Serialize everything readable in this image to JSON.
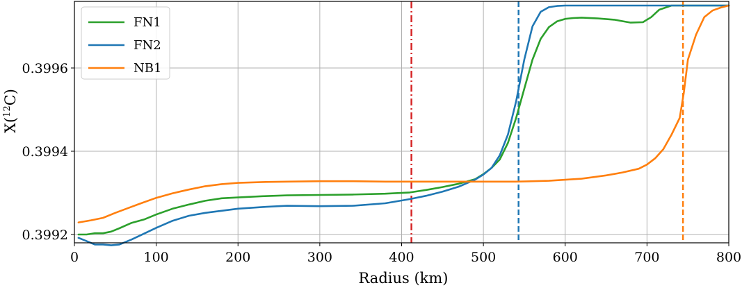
{
  "chart_data": {
    "type": "line",
    "xlabel": "Radius (km)",
    "ylabel": "X(12C)",
    "ylabel_sup": "12",
    "xlim": [
      0,
      800
    ],
    "ylim": [
      0.39918,
      0.39976
    ],
    "xticks": [
      0,
      100,
      200,
      300,
      400,
      500,
      600,
      700,
      800
    ],
    "xtick_labels": [
      "0",
      "100",
      "200",
      "300",
      "400",
      "500",
      "600",
      "700",
      "800"
    ],
    "yticks": [
      0.3992,
      0.3994,
      0.3996
    ],
    "ytick_labels": [
      "0.3992",
      "0.3994",
      "0.3996"
    ],
    "grid": true,
    "legend_position": "top-left",
    "series": [
      {
        "name": "FN1",
        "color": "#2ca02c",
        "x": [
          5,
          15,
          25,
          35,
          45,
          55,
          70,
          85,
          100,
          120,
          140,
          160,
          180,
          200,
          230,
          260,
          300,
          340,
          380,
          410,
          430,
          450,
          470,
          490,
          500,
          510,
          520,
          530,
          540,
          550,
          560,
          570,
          580,
          590,
          600,
          610,
          620,
          640,
          660,
          680,
          695,
          705,
          715,
          730,
          745,
          760,
          780,
          800
        ],
        "y": [
          0.3992,
          0.3992,
          0.399203,
          0.399203,
          0.399207,
          0.399215,
          0.399228,
          0.399236,
          0.399248,
          0.399262,
          0.399272,
          0.399281,
          0.399287,
          0.399289,
          0.399292,
          0.399294,
          0.399295,
          0.399296,
          0.399298,
          0.399301,
          0.399307,
          0.399314,
          0.399322,
          0.399333,
          0.399345,
          0.39936,
          0.39938,
          0.39942,
          0.39948,
          0.39955,
          0.39962,
          0.39967,
          0.399698,
          0.399712,
          0.399718,
          0.39972,
          0.399721,
          0.399719,
          0.399716,
          0.399709,
          0.39971,
          0.399722,
          0.39974,
          0.39975,
          0.39975,
          0.39975,
          0.39975,
          0.39975
        ]
      },
      {
        "name": "FN2",
        "color": "#1f77b4",
        "x": [
          5,
          15,
          25,
          35,
          45,
          55,
          70,
          85,
          100,
          120,
          140,
          160,
          180,
          200,
          230,
          260,
          300,
          340,
          380,
          410,
          430,
          450,
          470,
          490,
          500,
          510,
          520,
          530,
          540,
          550,
          560,
          570,
          580,
          590,
          600,
          620,
          650,
          700,
          750,
          800
        ],
        "y": [
          0.399192,
          0.399184,
          0.399176,
          0.399176,
          0.399174,
          0.399176,
          0.399188,
          0.399202,
          0.399216,
          0.399233,
          0.399245,
          0.399252,
          0.399257,
          0.399262,
          0.399266,
          0.399269,
          0.399268,
          0.399269,
          0.399275,
          0.399285,
          0.399293,
          0.399303,
          0.399315,
          0.399332,
          0.399344,
          0.39936,
          0.39939,
          0.39944,
          0.39952,
          0.39962,
          0.3997,
          0.399735,
          0.399746,
          0.399749,
          0.39975,
          0.39975,
          0.39975,
          0.39975,
          0.39975,
          0.39975
        ]
      },
      {
        "name": "NB1",
        "color": "#ff7f0e",
        "x": [
          5,
          20,
          35,
          50,
          65,
          80,
          100,
          120,
          140,
          160,
          180,
          200,
          230,
          260,
          300,
          340,
          380,
          420,
          460,
          500,
          540,
          580,
          620,
          650,
          670,
          690,
          700,
          710,
          720,
          730,
          740,
          745,
          750,
          760,
          770,
          780,
          790,
          800
        ],
        "y": [
          0.399229,
          0.399234,
          0.39924,
          0.399252,
          0.399263,
          0.399274,
          0.399288,
          0.399299,
          0.399308,
          0.399316,
          0.399321,
          0.399324,
          0.399326,
          0.399327,
          0.399328,
          0.399328,
          0.399327,
          0.399327,
          0.399327,
          0.399327,
          0.399327,
          0.399329,
          0.399334,
          0.399342,
          0.399349,
          0.399358,
          0.399368,
          0.399383,
          0.399405,
          0.39944,
          0.39948,
          0.39954,
          0.39962,
          0.39968,
          0.399722,
          0.399738,
          0.399745,
          0.39975
        ]
      }
    ],
    "vlines": [
      {
        "x": 412,
        "color": "#d62728",
        "style": "dashdot"
      },
      {
        "x": 543,
        "color": "#1f77b4",
        "style": "dashed"
      },
      {
        "x": 744,
        "color": "#ff7f0e",
        "style": "dashed"
      }
    ]
  }
}
